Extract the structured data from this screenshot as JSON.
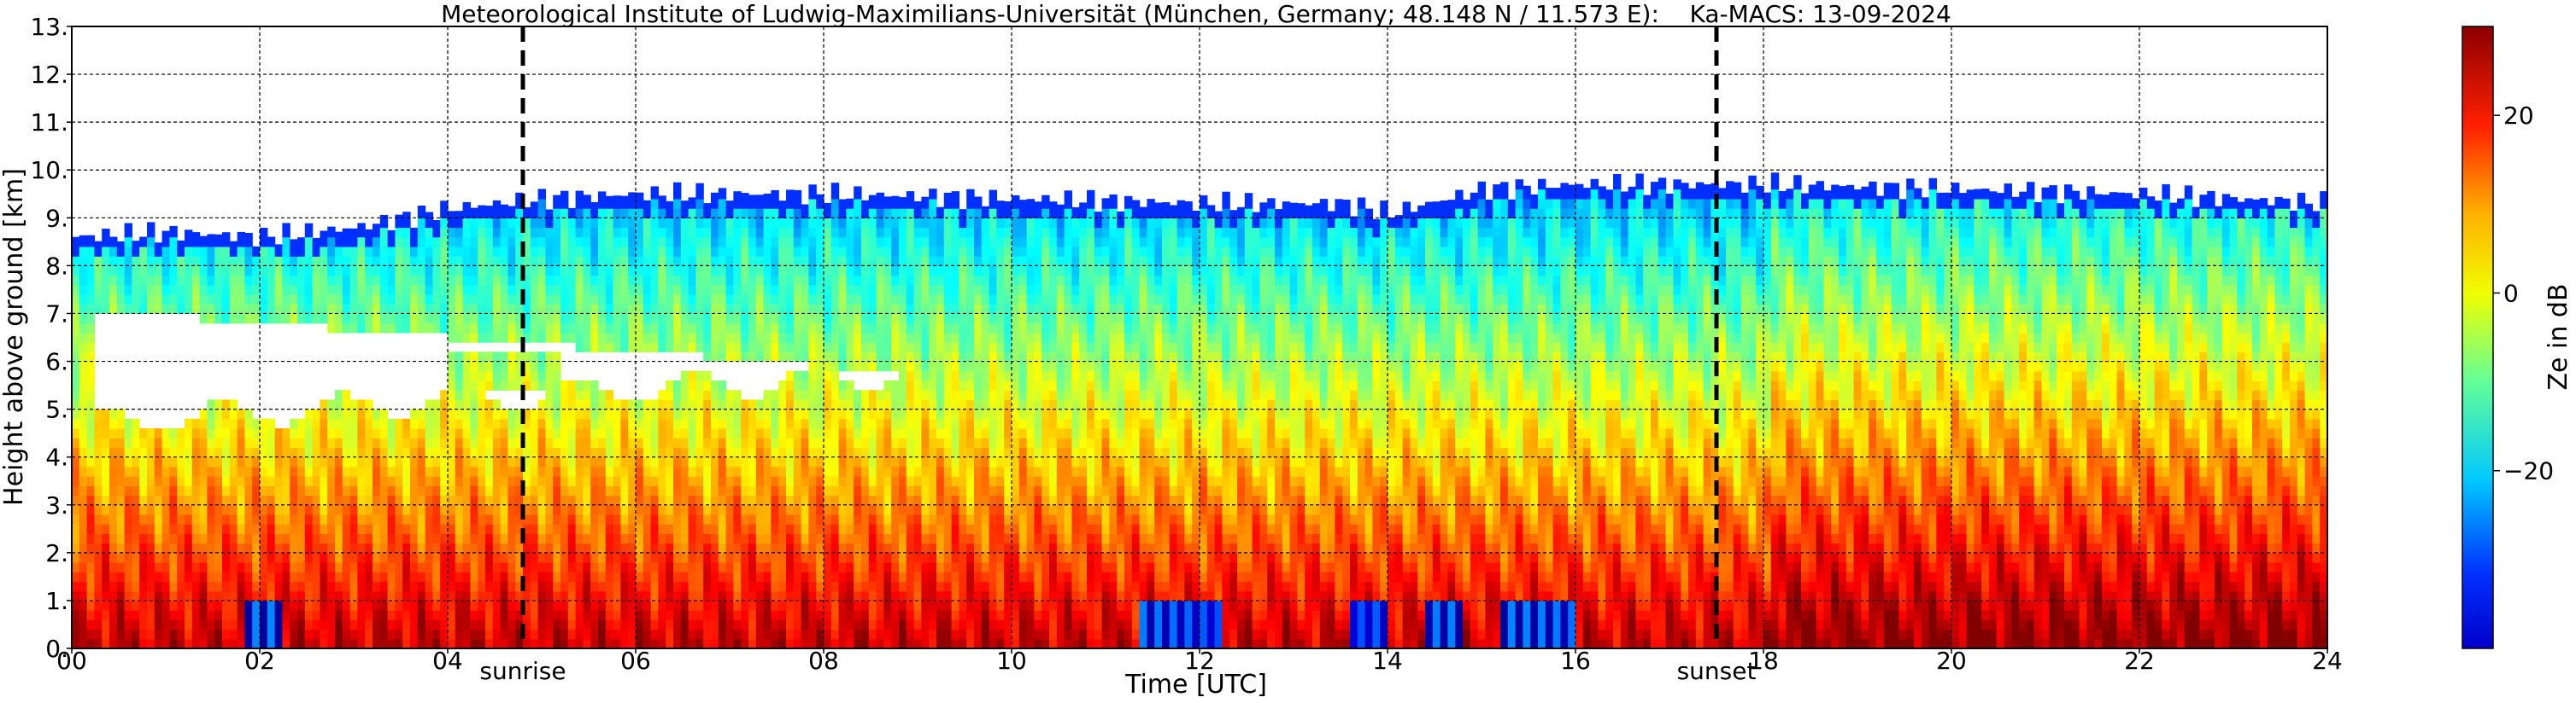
{
  "chart_data": {
    "type": "heatmap",
    "title": "Meteorological Institute of Ludwig-Maximilians-Universität (München, Germany; 48.148 N / 11.573 E):    Ka-MACS: 13-09-2024",
    "xlabel": "Time [UTC]",
    "ylabel": "Height above ground [km]",
    "xlim": [
      0,
      24
    ],
    "ylim": [
      0,
      13
    ],
    "x_ticks": [
      "00",
      "02",
      "04",
      "06",
      "08",
      "10",
      "12",
      "14",
      "16",
      "18",
      "20",
      "22",
      "24"
    ],
    "y_ticks": [
      "0.",
      "1.",
      "2.",
      "3.",
      "4.",
      "5.",
      "6.",
      "7.",
      "8.",
      "9.",
      "10.",
      "11.",
      "12.",
      "13."
    ],
    "grid": true,
    "colorbar": {
      "label": "Ze in dB",
      "range": [
        -40,
        30
      ],
      "ticks": [
        {
          "value": 20,
          "label": "20"
        },
        {
          "value": 0,
          "label": "0"
        },
        {
          "value": -20,
          "label": "−20"
        }
      ],
      "colormap": "jet"
    },
    "vertical_markers": [
      {
        "x": 4.8,
        "label": "sunrise"
      },
      {
        "x": 17.5,
        "label": "sunset"
      }
    ],
    "cloud_top_km": [
      {
        "time": 0.0,
        "top": 8.6
      },
      {
        "time": 1.0,
        "top": 8.7
      },
      {
        "time": 2.0,
        "top": 8.6
      },
      {
        "time": 3.0,
        "top": 8.8
      },
      {
        "time": 4.0,
        "top": 9.2
      },
      {
        "time": 5.0,
        "top": 9.4
      },
      {
        "time": 6.0,
        "top": 9.5
      },
      {
        "time": 8.0,
        "top": 9.5
      },
      {
        "time": 10.0,
        "top": 9.4
      },
      {
        "time": 12.0,
        "top": 9.3
      },
      {
        "time": 13.5,
        "top": 9.3
      },
      {
        "time": 14.0,
        "top": 9.1
      },
      {
        "time": 15.0,
        "top": 9.6
      },
      {
        "time": 16.0,
        "top": 9.7
      },
      {
        "time": 18.0,
        "top": 9.7
      },
      {
        "time": 20.0,
        "top": 9.6
      },
      {
        "time": 22.0,
        "top": 9.5
      },
      {
        "time": 24.0,
        "top": 9.3
      }
    ]
  }
}
